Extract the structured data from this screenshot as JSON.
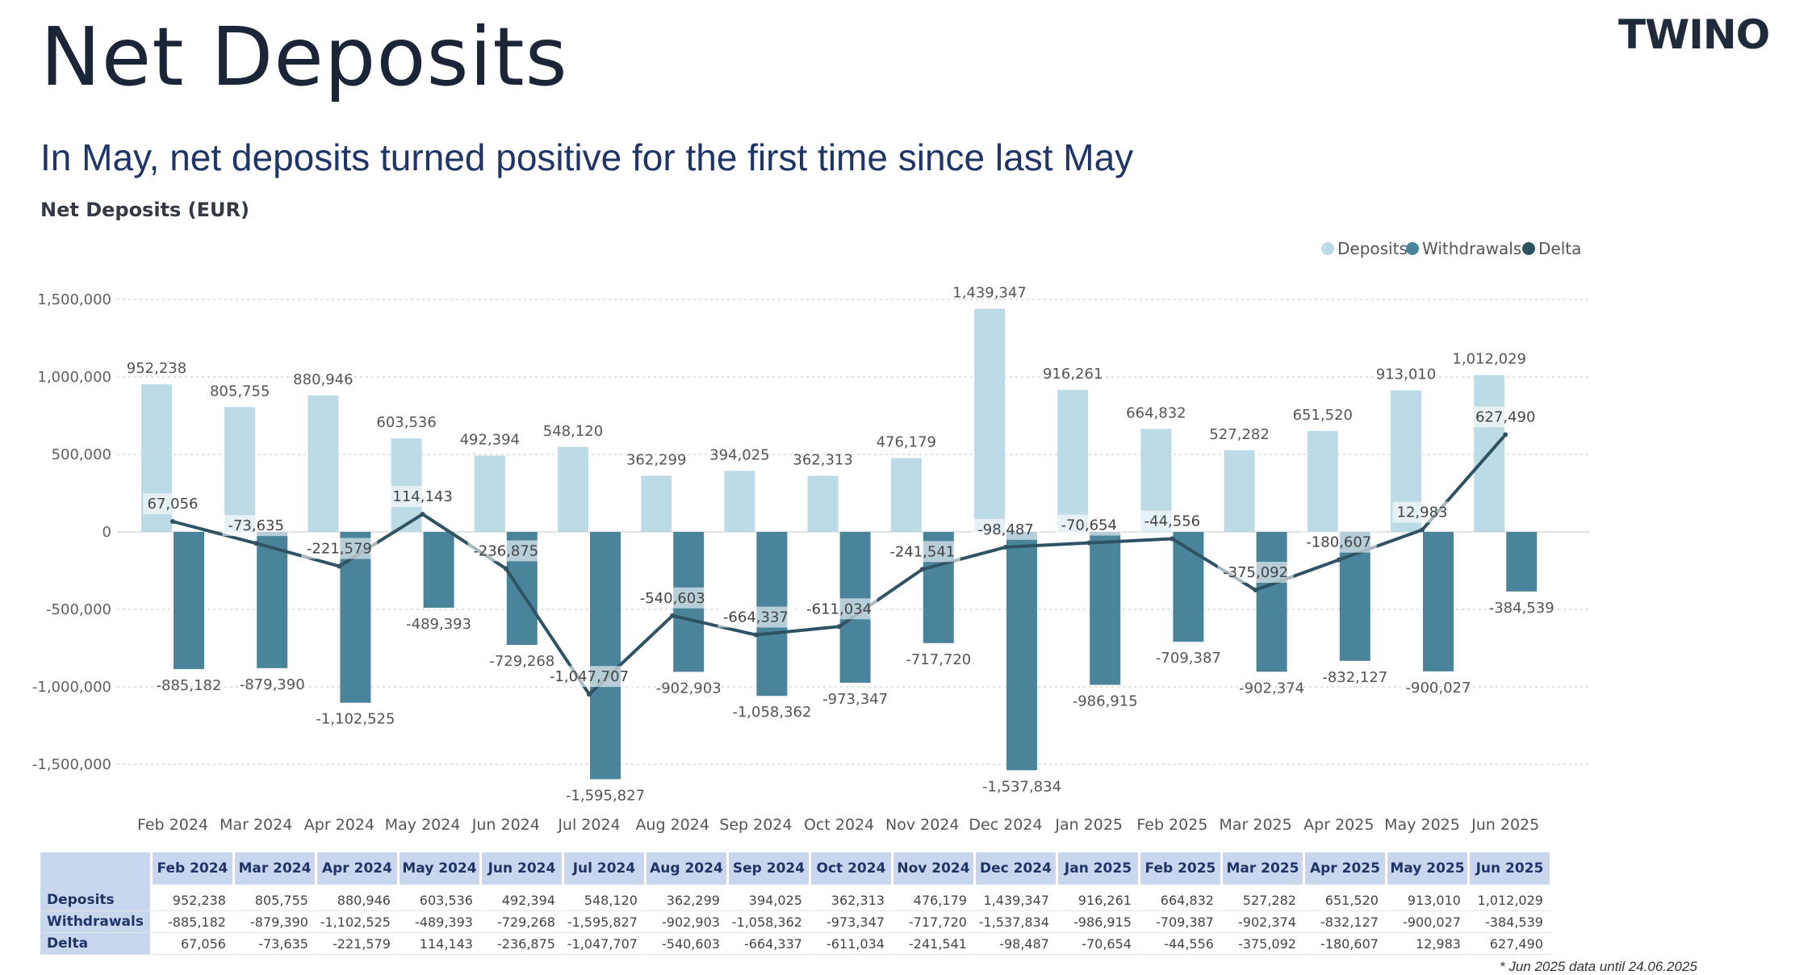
{
  "header": {
    "title": "Net Deposits",
    "brand": "TWINO",
    "subtitle": "In May, net deposits turned positive for the first time since last May",
    "footnote": "* Jun 2025 data until 24.06.2025"
  },
  "colors": {
    "deposits": "#bddbe6",
    "withdrawals": "#4a849b",
    "delta": "#2f5362",
    "table_header": "#c9d7ee"
  },
  "chart_data": {
    "type": "bar",
    "title": "Net Deposits (EUR)",
    "xlabel": "",
    "ylabel": "",
    "ylim": [
      -1500000,
      1500000
    ],
    "yticks": [
      1500000,
      1000000,
      500000,
      0,
      -500000,
      -1000000,
      -1500000
    ],
    "ytick_labels": [
      "1,500,000",
      "1,000,000",
      "500,000",
      "0",
      "-500,000",
      "-1,000,000",
      "-1,500,000"
    ],
    "grid": true,
    "legend_position": "top-right",
    "categories": [
      "Feb 2024",
      "Mar 2024",
      "Apr 2024",
      "May 2024",
      "Jun 2024",
      "Jul 2024",
      "Aug 2024",
      "Sep 2024",
      "Oct 2024",
      "Nov 2024",
      "Dec 2024",
      "Jan 2025",
      "Feb 2025",
      "Mar 2025",
      "Apr 2025",
      "May 2025",
      "Jun 2025"
    ],
    "series": [
      {
        "name": "Deposits",
        "type": "bar",
        "values": [
          952238,
          805755,
          880946,
          603536,
          492394,
          548120,
          362299,
          394025,
          362313,
          476179,
          1439347,
          916261,
          664832,
          527282,
          651520,
          913010,
          1012029
        ],
        "labels": [
          "952,238",
          "805,755",
          "880,946",
          "603,536",
          "492,394",
          "548,120",
          "362,299",
          "394,025",
          "362,313",
          "476,179",
          "1,439,347",
          "916,261",
          "664,832",
          "527,282",
          "651,520",
          "913,010",
          "1,012,029"
        ]
      },
      {
        "name": "Withdrawals",
        "type": "bar",
        "values": [
          -885182,
          -879390,
          -1102525,
          -489393,
          -729268,
          -1595827,
          -902903,
          -1058362,
          -973347,
          -717720,
          -1537834,
          -986915,
          -709387,
          -902374,
          -832127,
          -900027,
          -384539
        ],
        "labels": [
          "-885,182",
          "-879,390",
          "-1,102,525",
          "-489,393",
          "-729,268",
          "-1,595,827",
          "-902,903",
          "-1,058,362",
          "-973,347",
          "-717,720",
          "-1,537,834",
          "-986,915",
          "-709,387",
          "-902,374",
          "-832,127",
          "-900,027",
          "-384,539"
        ]
      },
      {
        "name": "Delta",
        "type": "line",
        "values": [
          67056,
          -73635,
          -221579,
          114143,
          -236875,
          -1047707,
          -540603,
          -664337,
          -611034,
          -241541,
          -98487,
          -70654,
          -44556,
          -375092,
          -180607,
          12983,
          627490
        ],
        "labels": [
          "67,056",
          "-73,635",
          "-221,579",
          "114,143",
          "-236,875",
          "-1,047,707",
          "-540,603",
          "-664,337",
          "-611,034",
          "-241,541",
          "-98,487",
          "-70,654",
          "-44,556",
          "-375,092",
          "-180,607",
          "12,983",
          "627,490"
        ]
      }
    ]
  },
  "table": {
    "months": [
      "Feb 2024",
      "Mar 2024",
      "Apr 2024",
      "May 2024",
      "Jun 2024",
      "Jul 2024",
      "Aug 2024",
      "Sep 2024",
      "Oct 2024",
      "Nov 2024",
      "Dec 2024",
      "Jan 2025",
      "Feb 2025",
      "Mar 2025",
      "Apr 2025",
      "May 2025",
      "Jun 2025"
    ],
    "rows": [
      {
        "label": "Deposits",
        "values": [
          "952,238",
          "805,755",
          "880,946",
          "603,536",
          "492,394",
          "548,120",
          "362,299",
          "394,025",
          "362,313",
          "476,179",
          "1,439,347",
          "916,261",
          "664,832",
          "527,282",
          "651,520",
          "913,010",
          "1,012,029"
        ]
      },
      {
        "label": "Withdrawals",
        "values": [
          "-885,182",
          "-879,390",
          "-1,102,525",
          "-489,393",
          "-729,268",
          "-1,595,827",
          "-902,903",
          "-1,058,362",
          "-973,347",
          "-717,720",
          "-1,537,834",
          "-986,915",
          "-709,387",
          "-902,374",
          "-832,127",
          "-900,027",
          "-384,539"
        ]
      },
      {
        "label": "Delta",
        "values": [
          "67,056",
          "-73,635",
          "-221,579",
          "114,143",
          "-236,875",
          "-1,047,707",
          "-540,603",
          "-664,337",
          "-611,034",
          "-241,541",
          "-98,487",
          "-70,654",
          "-44,556",
          "-375,092",
          "-180,607",
          "12,983",
          "627,490"
        ]
      }
    ]
  }
}
